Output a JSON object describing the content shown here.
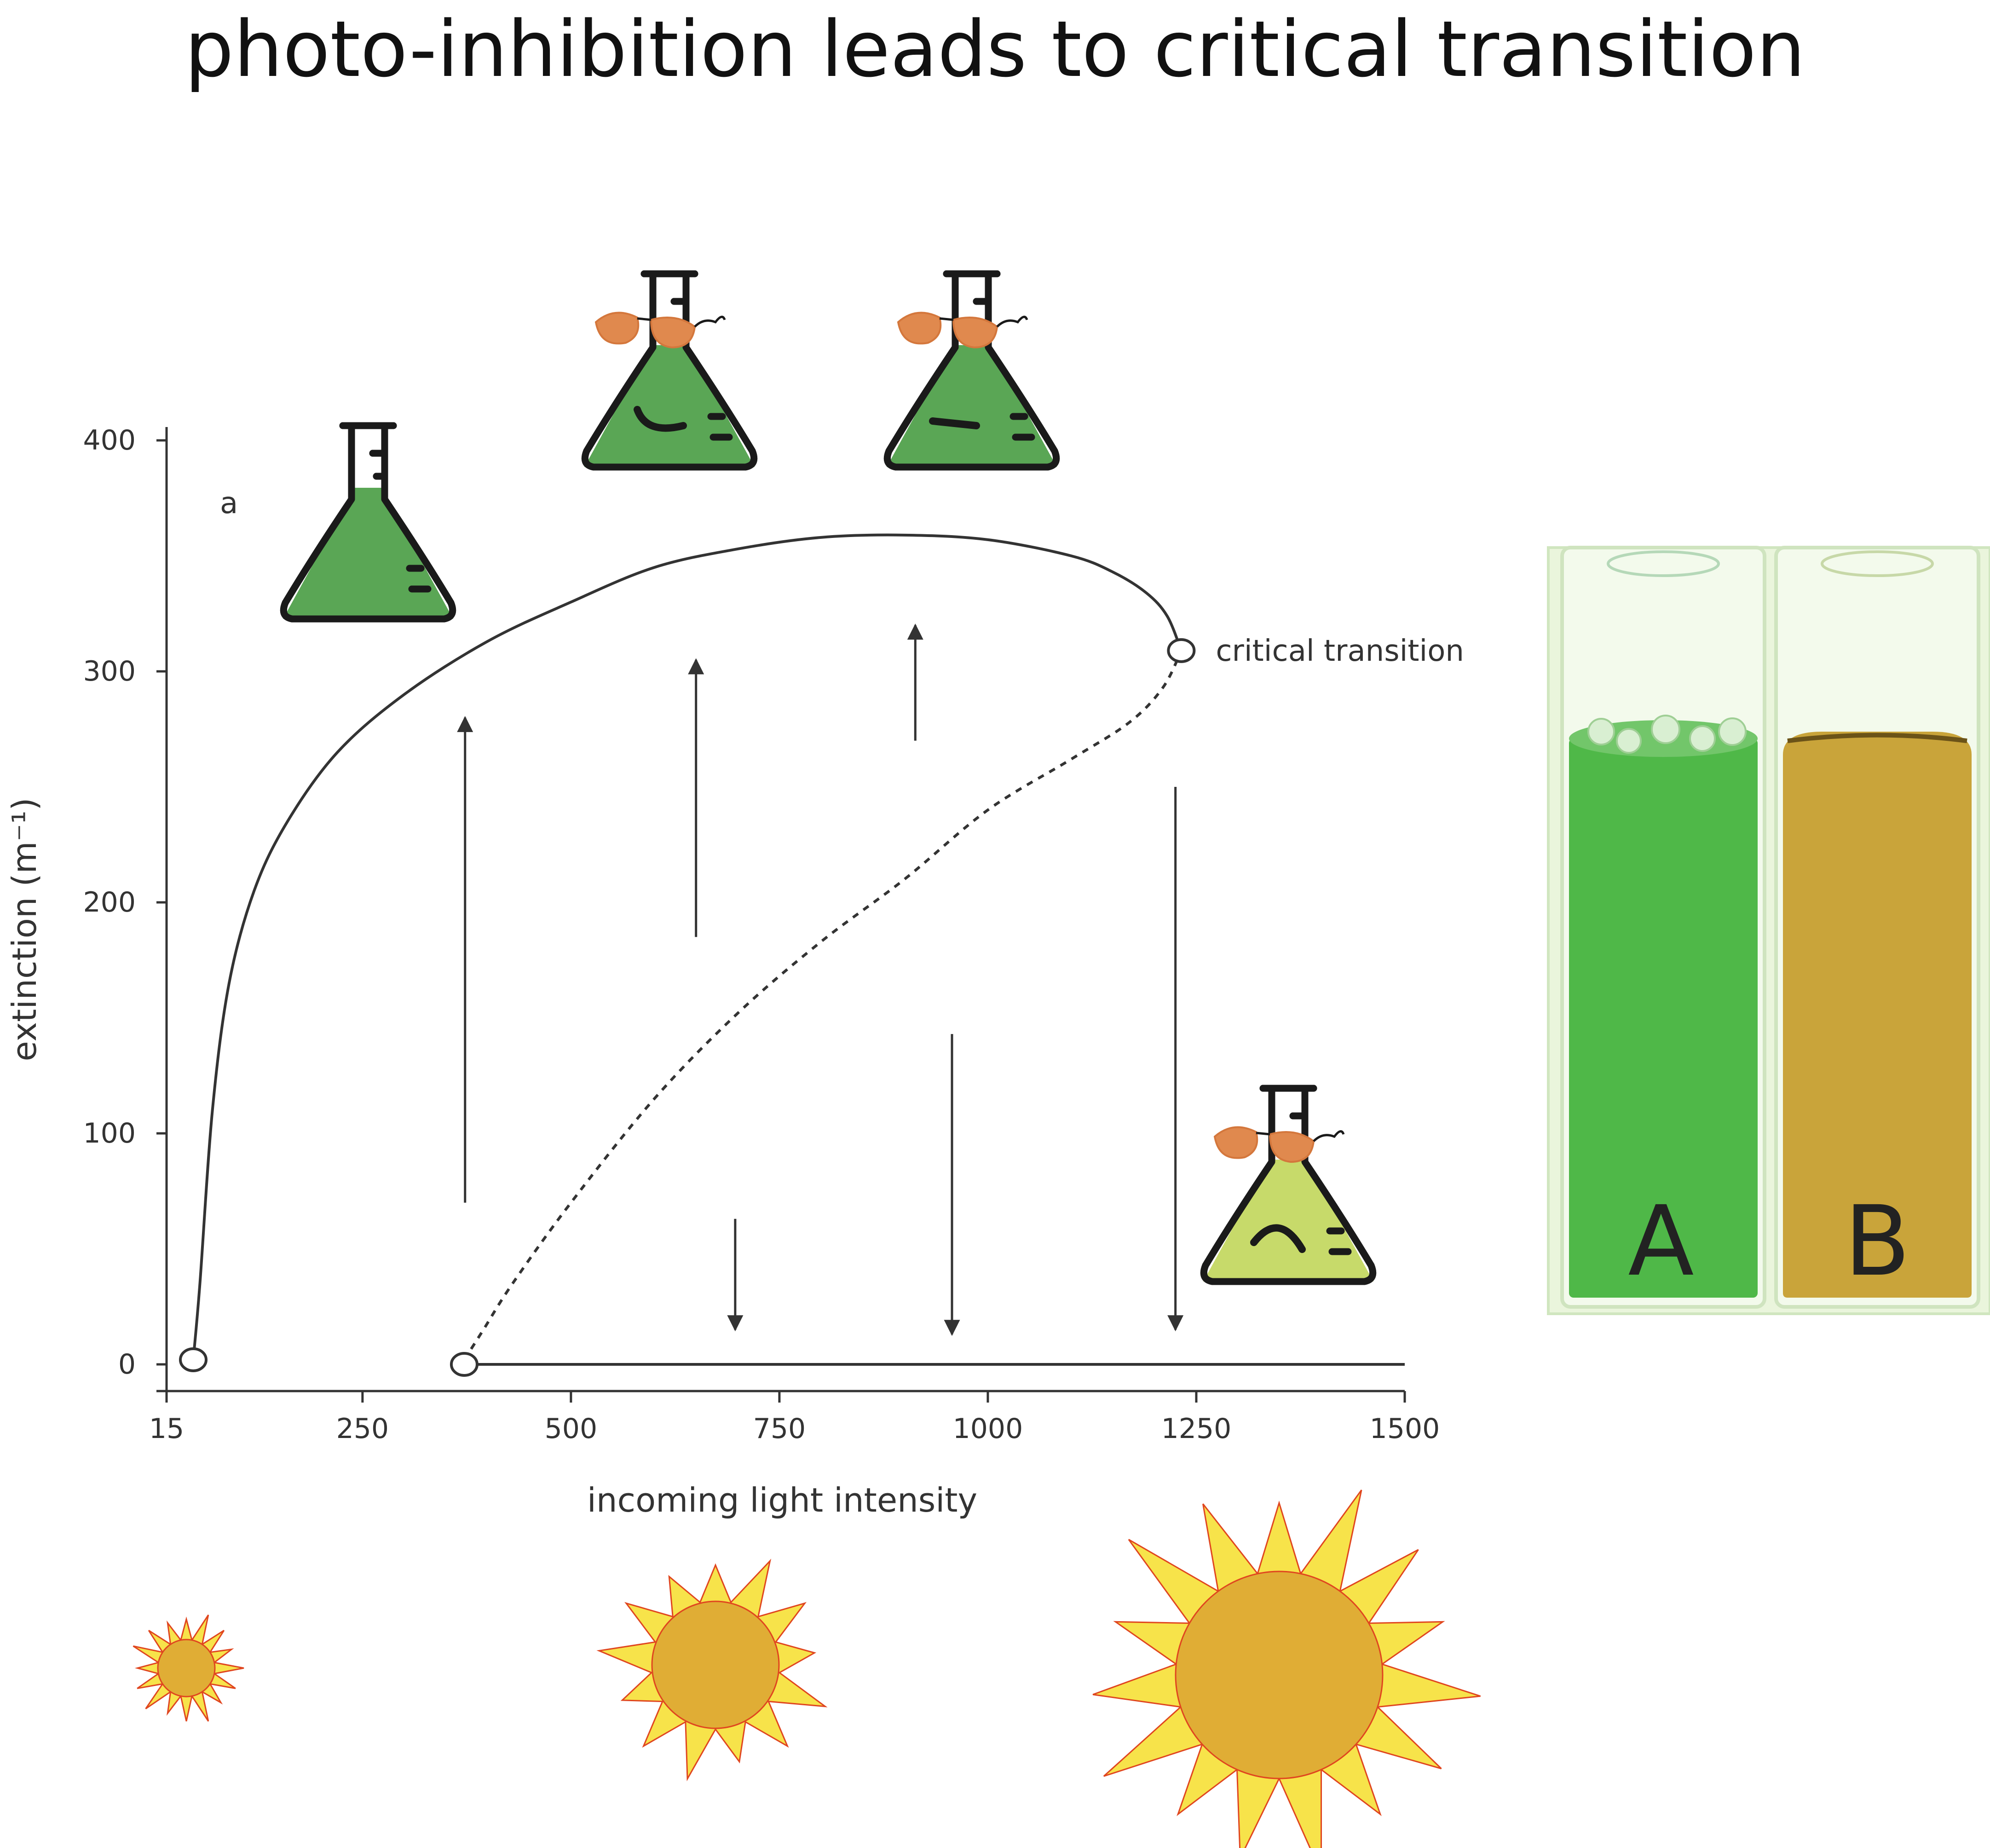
{
  "page_title": "photo-inhibition leads to critical transition",
  "colors": {
    "background": "#ffffff",
    "curve": "#333333",
    "flask_healthy": "#5aa655",
    "flask_stressed": "#c7da6a",
    "sunglasses": "#e0894e",
    "sun_rays": "#f7e34a",
    "sun_disc": "#e0ad35",
    "sun_outline": "#e0461f",
    "cuvette_a_liquid": "#4fb848",
    "cuvette_b_liquid": "#c9a43a"
  },
  "icons": [
    "flask-icon",
    "flask-sunglasses-smile-icon",
    "flask-sunglasses-neutral-icon",
    "flask-sunglasses-frown-icon",
    "sun-icon",
    "cuvette-photo"
  ],
  "chart_data": {
    "type": "line",
    "panel_label": "a",
    "xlabel": "incoming light intensity",
    "ylabel": "extinction (m⁻¹)",
    "xlim": [
      15,
      1500
    ],
    "ylim": [
      0,
      400
    ],
    "xticks": [
      15,
      250,
      500,
      750,
      1000,
      1250,
      1500
    ],
    "yticks": [
      0,
      100,
      200,
      300,
      400
    ],
    "grid": false,
    "series": [
      {
        "style": "solid",
        "x": [
          47,
          55,
          70,
          90,
          120,
          160,
          220,
          300,
          400,
          500,
          600,
          700,
          800,
          900,
          1000,
          1100,
          1150,
          1190,
          1215,
          1232
        ],
        "y": [
          2,
          35,
          110,
          165,
          205,
          235,
          265,
          290,
          313,
          330,
          345,
          353,
          358,
          359,
          357,
          350,
          343,
          334,
          324,
          309
        ]
      },
      {
        "style": "dashed",
        "x": [
          372,
          395,
          430,
          500,
          600,
          700,
          800,
          900,
          1000,
          1100,
          1170,
          1210,
          1232
        ],
        "y": [
          2,
          15,
          35,
          70,
          115,
          152,
          183,
          210,
          240,
          262,
          278,
          293,
          309
        ]
      },
      {
        "style": "solid",
        "x": [
          372,
          1500
        ],
        "y": [
          0,
          0
        ]
      }
    ],
    "markers": [
      {
        "x": 47,
        "y": 2
      },
      {
        "x": 372,
        "y": 0
      },
      {
        "x": 1232,
        "y": 309
      }
    ],
    "arrows": [
      {
        "x": 373,
        "y_from": 70,
        "y_to": 280
      },
      {
        "x": 650,
        "y_from": 185,
        "y_to": 305
      },
      {
        "x": 913,
        "y_from": 270,
        "y_to": 320
      },
      {
        "x": 697,
        "y_from": 63,
        "y_to": 15
      },
      {
        "x": 957,
        "y_from": 143,
        "y_to": 13
      },
      {
        "x": 1225,
        "y_from": 250,
        "y_to": 15
      }
    ],
    "annotations": [
      {
        "text": "critical transition",
        "x": 1232,
        "y": 309
      }
    ]
  },
  "photo": {
    "labels": [
      "A",
      "B"
    ]
  }
}
